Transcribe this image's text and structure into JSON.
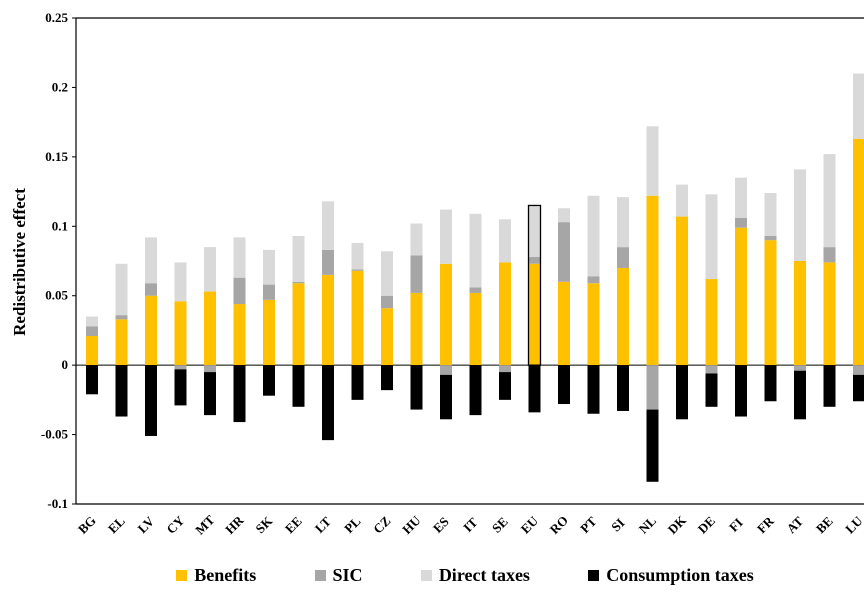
{
  "chart_data": {
    "type": "bar",
    "stacked": true,
    "ylabel": "Redistributive effect",
    "ylim": [
      -0.1,
      0.25
    ],
    "yticks": [
      {
        "value": 0.25,
        "label": "0.25"
      },
      {
        "value": 0.2,
        "label": "0.2"
      },
      {
        "value": 0.15,
        "label": "0.15"
      },
      {
        "value": 0.1,
        "label": "0.1"
      },
      {
        "value": 0.05,
        "label": "0.05"
      },
      {
        "value": 0,
        "label": "0"
      },
      {
        "value": -0.05,
        "label": "-0.05"
      },
      {
        "value": -0.1,
        "label": "-0.1"
      }
    ],
    "categories": [
      "BG",
      "EL",
      "LV",
      "CY",
      "MT",
      "HR",
      "SK",
      "EE",
      "LT",
      "PL",
      "CZ",
      "HU",
      "ES",
      "IT",
      "SE",
      "EU",
      "RO",
      "PT",
      "SI",
      "NL",
      "DK",
      "DE",
      "FI",
      "FR",
      "AT",
      "BE",
      "LU"
    ],
    "highlight_category": "EU",
    "series": [
      {
        "name": "Benefits",
        "color": "#FFC000",
        "values": [
          0.021,
          0.033,
          0.05,
          0.046,
          0.053,
          0.044,
          0.047,
          0.059,
          0.065,
          0.068,
          0.041,
          0.052,
          0.073,
          0.052,
          0.074,
          0.073,
          0.06,
          0.059,
          0.07,
          0.122,
          0.107,
          0.062,
          0.099,
          0.09,
          0.075,
          0.074,
          0.163
        ]
      },
      {
        "name": "SIC",
        "color": "#A6A6A6",
        "values": [
          0.007,
          0.003,
          0.009,
          -0.003,
          -0.005,
          0.019,
          0.011,
          0.001,
          0.018,
          0.001,
          0.009,
          0.027,
          -0.007,
          0.004,
          -0.005,
          0.005,
          0.043,
          0.005,
          0.015,
          -0.032,
          0,
          -0.006,
          0.007,
          0.003,
          -0.004,
          0.011,
          -0.007
        ]
      },
      {
        "name": "Direct taxes",
        "color": "#D9D9D9",
        "values": [
          0.007,
          0.037,
          0.033,
          0.028,
          0.032,
          0.029,
          0.025,
          0.033,
          0.035,
          0.019,
          0.032,
          0.023,
          0.039,
          0.053,
          0.031,
          0.037,
          0.01,
          0.058,
          0.036,
          0.05,
          0.023,
          0.061,
          0.029,
          0.031,
          0.066,
          0.067,
          0.047
        ]
      },
      {
        "name": "Consumption taxes",
        "color": "#000000",
        "values": [
          -0.021,
          -0.037,
          -0.051,
          -0.026,
          -0.031,
          -0.041,
          -0.022,
          -0.03,
          -0.054,
          -0.025,
          -0.018,
          -0.032,
          -0.032,
          -0.036,
          -0.02,
          -0.034,
          -0.028,
          -0.035,
          -0.033,
          -0.052,
          -0.039,
          -0.024,
          -0.037,
          -0.026,
          -0.035,
          -0.03,
          -0.019
        ]
      }
    ]
  }
}
